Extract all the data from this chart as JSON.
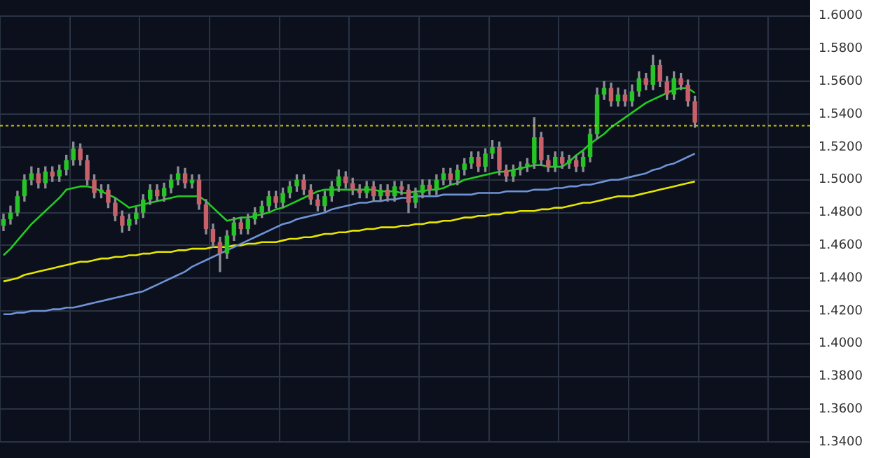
{
  "chart_data": {
    "type": "candlestick",
    "categories": [
      null,
      null,
      null,
      null,
      null,
      null,
      null,
      null,
      null,
      null,
      null,
      null,
      null,
      null,
      null,
      null,
      null,
      null,
      null,
      null,
      null,
      null,
      null,
      null,
      null,
      null,
      null,
      null,
      null,
      null,
      null,
      null,
      null,
      null,
      null,
      null,
      null,
      null,
      null,
      null,
      null,
      null,
      null,
      null,
      null,
      null,
      null,
      null,
      null,
      null,
      null,
      null,
      null,
      null,
      null,
      null,
      null,
      null,
      null,
      null,
      null,
      null,
      null,
      null,
      null,
      null,
      null,
      null,
      null,
      null,
      null,
      null,
      null,
      null,
      null,
      null,
      null,
      null,
      null,
      null,
      null,
      null,
      null,
      null,
      null,
      null,
      null,
      null,
      null,
      null,
      null,
      null,
      null,
      null,
      null,
      null,
      null,
      null,
      null,
      null,
      null,
      null,
      null,
      null,
      null,
      null,
      null,
      null,
      null,
      null,
      null,
      null,
      null,
      null,
      null,
      null
    ],
    "ohlc": [
      [
        1.472,
        1.479,
        1.469,
        1.476
      ],
      [
        1.476,
        1.484,
        1.473,
        1.48
      ],
      [
        1.48,
        1.493,
        1.478,
        1.49
      ],
      [
        1.49,
        1.503,
        1.487,
        1.5
      ],
      [
        1.5,
        1.508,
        1.497,
        1.504
      ],
      [
        1.504,
        1.507,
        1.495,
        1.498
      ],
      [
        1.498,
        1.508,
        1.495,
        1.505
      ],
      [
        1.505,
        1.508,
        1.499,
        1.502
      ],
      [
        1.502,
        1.509,
        1.499,
        1.506
      ],
      [
        1.506,
        1.515,
        1.503,
        1.512
      ],
      [
        1.512,
        1.523,
        1.509,
        1.519
      ],
      [
        1.519,
        1.522,
        1.509,
        1.512
      ],
      [
        1.512,
        1.515,
        1.497,
        1.5
      ],
      [
        1.5,
        1.503,
        1.489,
        1.492
      ],
      [
        1.492,
        1.497,
        1.489,
        1.494
      ],
      [
        1.494,
        1.497,
        1.483,
        1.486
      ],
      [
        1.486,
        1.489,
        1.475,
        1.478
      ],
      [
        1.478,
        1.481,
        1.468,
        1.472
      ],
      [
        1.472,
        1.479,
        1.469,
        1.476
      ],
      [
        1.476,
        1.483,
        1.473,
        1.48
      ],
      [
        1.48,
        1.491,
        1.477,
        1.488
      ],
      [
        1.488,
        1.497,
        1.485,
        1.494
      ],
      [
        1.494,
        1.497,
        1.487,
        1.49
      ],
      [
        1.49,
        1.498,
        1.487,
        1.495
      ],
      [
        1.495,
        1.503,
        1.492,
        1.5
      ],
      [
        1.5,
        1.508,
        1.497,
        1.504
      ],
      [
        1.504,
        1.507,
        1.495,
        1.498
      ],
      [
        1.498,
        1.503,
        1.495,
        1.5
      ],
      [
        1.5,
        1.503,
        1.482,
        1.485
      ],
      [
        1.485,
        1.488,
        1.467,
        1.47
      ],
      [
        1.47,
        1.473,
        1.459,
        1.462
      ],
      [
        1.462,
        1.465,
        1.444,
        1.455
      ],
      [
        1.455,
        1.469,
        1.452,
        1.466
      ],
      [
        1.466,
        1.477,
        1.463,
        1.474
      ],
      [
        1.474,
        1.477,
        1.467,
        1.47
      ],
      [
        1.47,
        1.479,
        1.467,
        1.476
      ],
      [
        1.476,
        1.483,
        1.473,
        1.48
      ],
      [
        1.48,
        1.487,
        1.477,
        1.484
      ],
      [
        1.484,
        1.493,
        1.481,
        1.49
      ],
      [
        1.49,
        1.493,
        1.483,
        1.486
      ],
      [
        1.486,
        1.495,
        1.483,
        1.492
      ],
      [
        1.492,
        1.499,
        1.489,
        1.496
      ],
      [
        1.496,
        1.503,
        1.493,
        1.5
      ],
      [
        1.5,
        1.503,
        1.491,
        1.494
      ],
      [
        1.494,
        1.497,
        1.485,
        1.488
      ],
      [
        1.488,
        1.491,
        1.481,
        1.484
      ],
      [
        1.484,
        1.493,
        1.481,
        1.49
      ],
      [
        1.49,
        1.499,
        1.487,
        1.496
      ],
      [
        1.496,
        1.506,
        1.493,
        1.502
      ],
      [
        1.502,
        1.505,
        1.495,
        1.498
      ],
      [
        1.498,
        1.501,
        1.491,
        1.494
      ],
      [
        1.494,
        1.497,
        1.489,
        1.492
      ],
      [
        1.492,
        1.499,
        1.489,
        1.496
      ],
      [
        1.496,
        1.499,
        1.487,
        1.49
      ],
      [
        1.49,
        1.497,
        1.487,
        1.494
      ],
      [
        1.494,
        1.497,
        1.487,
        1.49
      ],
      [
        1.49,
        1.499,
        1.487,
        1.496
      ],
      [
        1.496,
        1.499,
        1.491,
        1.494
      ],
      [
        1.494,
        1.497,
        1.48,
        1.486
      ],
      [
        1.486,
        1.495,
        1.483,
        1.492
      ],
      [
        1.492,
        1.5,
        1.489,
        1.497
      ],
      [
        1.497,
        1.5,
        1.491,
        1.494
      ],
      [
        1.494,
        1.503,
        1.491,
        1.5
      ],
      [
        1.5,
        1.507,
        1.497,
        1.504
      ],
      [
        1.504,
        1.507,
        1.497,
        1.5
      ],
      [
        1.5,
        1.509,
        1.497,
        1.506
      ],
      [
        1.506,
        1.513,
        1.503,
        1.51
      ],
      [
        1.51,
        1.517,
        1.507,
        1.514
      ],
      [
        1.514,
        1.517,
        1.505,
        1.508
      ],
      [
        1.508,
        1.519,
        1.505,
        1.516
      ],
      [
        1.516,
        1.524,
        1.513,
        1.52
      ],
      [
        1.52,
        1.523,
        1.503,
        1.506
      ],
      [
        1.506,
        1.509,
        1.499,
        1.502
      ],
      [
        1.502,
        1.509,
        1.499,
        1.506
      ],
      [
        1.506,
        1.511,
        1.503,
        1.508
      ],
      [
        1.508,
        1.513,
        1.505,
        1.51
      ],
      [
        1.51,
        1.538,
        1.507,
        1.526
      ],
      [
        1.526,
        1.529,
        1.509,
        1.512
      ],
      [
        1.512,
        1.515,
        1.505,
        1.508
      ],
      [
        1.508,
        1.517,
        1.505,
        1.514
      ],
      [
        1.514,
        1.517,
        1.507,
        1.51
      ],
      [
        1.51,
        1.515,
        1.507,
        1.512
      ],
      [
        1.512,
        1.515,
        1.505,
        1.508
      ],
      [
        1.508,
        1.517,
        1.505,
        1.514
      ],
      [
        1.514,
        1.531,
        1.511,
        1.528
      ],
      [
        1.528,
        1.556,
        1.525,
        1.552
      ],
      [
        1.552,
        1.56,
        1.549,
        1.556
      ],
      [
        1.556,
        1.559,
        1.545,
        1.548
      ],
      [
        1.548,
        1.556,
        1.545,
        1.552
      ],
      [
        1.552,
        1.555,
        1.545,
        1.548
      ],
      [
        1.548,
        1.558,
        1.545,
        1.554
      ],
      [
        1.554,
        1.566,
        1.551,
        1.562
      ],
      [
        1.562,
        1.565,
        1.555,
        1.558
      ],
      [
        1.558,
        1.576,
        1.555,
        1.57
      ],
      [
        1.57,
        1.573,
        1.557,
        1.56
      ],
      [
        1.56,
        1.563,
        1.549,
        1.552
      ],
      [
        1.552,
        1.566,
        1.549,
        1.562
      ],
      [
        1.562,
        1.565,
        1.555,
        1.558
      ],
      [
        1.558,
        1.561,
        1.545,
        1.548
      ],
      [
        1.548,
        1.551,
        1.532,
        1.535
      ],
      null,
      null,
      null,
      null,
      null,
      null,
      null,
      null,
      null,
      null,
      null,
      null,
      null,
      null,
      null,
      null
    ],
    "series": [
      {
        "type": "line",
        "color": "#22cc22",
        "values": [
          1.454,
          1.458,
          1.463,
          1.468,
          1.473,
          1.477,
          1.481,
          1.485,
          1.489,
          1.494,
          1.495,
          1.496,
          1.496,
          1.495,
          1.493,
          1.491,
          1.489,
          1.486,
          1.483,
          1.484,
          1.485,
          1.486,
          1.487,
          1.488,
          1.489,
          1.49,
          1.49,
          1.49,
          1.49,
          1.487,
          1.483,
          1.479,
          1.475,
          1.476,
          1.477,
          1.477,
          1.478,
          1.479,
          1.48,
          1.482,
          1.483,
          1.485,
          1.487,
          1.489,
          1.491,
          1.493,
          1.494,
          1.494,
          1.494,
          1.494,
          1.494,
          1.494,
          1.494,
          1.494,
          1.493,
          1.493,
          1.493,
          1.492,
          1.492,
          1.493,
          1.493,
          1.494,
          1.494,
          1.495,
          1.497,
          1.498,
          1.5,
          1.501,
          1.502,
          1.503,
          1.504,
          1.505,
          1.505,
          1.506,
          1.507,
          1.508,
          1.509,
          1.509,
          1.508,
          1.508,
          1.508,
          1.511,
          1.515,
          1.518,
          1.522,
          1.525,
          1.528,
          1.532,
          1.535,
          1.538,
          1.541,
          1.544,
          1.547,
          1.549,
          1.551,
          1.553,
          1.555,
          1.556,
          1.556,
          1.553,
          null,
          null,
          null,
          null,
          null,
          null,
          null,
          null,
          null,
          null,
          null,
          null,
          null,
          null,
          null,
          null
        ]
      },
      {
        "type": "line",
        "color": "#6f93d6",
        "values": [
          1.418,
          1.418,
          1.419,
          1.419,
          1.42,
          1.42,
          1.42,
          1.421,
          1.421,
          1.422,
          1.422,
          1.423,
          1.424,
          1.425,
          1.426,
          1.427,
          1.428,
          1.429,
          1.43,
          1.431,
          1.432,
          1.434,
          1.436,
          1.438,
          1.44,
          1.442,
          1.444,
          1.447,
          1.449,
          1.451,
          1.453,
          1.455,
          1.457,
          1.459,
          1.461,
          1.463,
          1.465,
          1.467,
          1.469,
          1.471,
          1.473,
          1.474,
          1.476,
          1.477,
          1.478,
          1.479,
          1.48,
          1.482,
          1.483,
          1.484,
          1.485,
          1.486,
          1.486,
          1.487,
          1.487,
          1.488,
          1.488,
          1.489,
          1.489,
          1.49,
          1.49,
          1.49,
          1.49,
          1.491,
          1.491,
          1.491,
          1.491,
          1.491,
          1.492,
          1.492,
          1.492,
          1.492,
          1.493,
          1.493,
          1.493,
          1.493,
          1.494,
          1.494,
          1.494,
          1.495,
          1.495,
          1.496,
          1.496,
          1.497,
          1.497,
          1.498,
          1.499,
          1.5,
          1.5,
          1.501,
          1.502,
          1.503,
          1.504,
          1.506,
          1.507,
          1.509,
          1.51,
          1.512,
          1.514,
          1.516,
          null,
          null,
          null,
          null,
          null,
          null,
          null,
          null,
          null,
          null,
          null,
          null,
          null,
          null,
          null,
          null
        ]
      },
      {
        "type": "line",
        "color": "#e6e600",
        "values": [
          1.438,
          1.439,
          1.44,
          1.442,
          1.443,
          1.444,
          1.445,
          1.446,
          1.447,
          1.448,
          1.449,
          1.45,
          1.45,
          1.451,
          1.452,
          1.452,
          1.453,
          1.453,
          1.454,
          1.454,
          1.455,
          1.455,
          1.456,
          1.456,
          1.456,
          1.457,
          1.457,
          1.458,
          1.458,
          1.458,
          1.459,
          1.459,
          1.459,
          1.46,
          1.46,
          1.461,
          1.461,
          1.462,
          1.462,
          1.462,
          1.463,
          1.464,
          1.464,
          1.465,
          1.465,
          1.466,
          1.467,
          1.467,
          1.468,
          1.468,
          1.469,
          1.469,
          1.47,
          1.47,
          1.471,
          1.471,
          1.471,
          1.472,
          1.472,
          1.473,
          1.473,
          1.474,
          1.474,
          1.475,
          1.475,
          1.476,
          1.477,
          1.477,
          1.478,
          1.478,
          1.479,
          1.479,
          1.48,
          1.48,
          1.481,
          1.481,
          1.481,
          1.482,
          1.482,
          1.483,
          1.483,
          1.484,
          1.485,
          1.486,
          1.486,
          1.487,
          1.488,
          1.489,
          1.49,
          1.49,
          1.49,
          1.491,
          1.492,
          1.493,
          1.494,
          1.495,
          1.496,
          1.497,
          1.498,
          1.499,
          null,
          null,
          null,
          null,
          null,
          null,
          null,
          null,
          null,
          null,
          null,
          null,
          null,
          null,
          null,
          null
        ]
      }
    ],
    "ylim": [
      1.34,
      1.6
    ],
    "yticks": [
      {
        "value": 1.34,
        "label": "1.3400"
      },
      {
        "value": 1.36,
        "label": "1.3600"
      },
      {
        "value": 1.38,
        "label": "1.3800"
      },
      {
        "value": 1.4,
        "label": "1.4000"
      },
      {
        "value": 1.42,
        "label": "1.4200"
      },
      {
        "value": 1.44,
        "label": "1.4400"
      },
      {
        "value": 1.46,
        "label": "1.4600"
      },
      {
        "value": 1.48,
        "label": "1.4800"
      },
      {
        "value": 1.5,
        "label": "1.5000"
      },
      {
        "value": 1.52,
        "label": "1.5200"
      },
      {
        "value": 1.54,
        "label": "1.5400"
      },
      {
        "value": 1.56,
        "label": "1.5600"
      },
      {
        "value": 1.58,
        "label": "1.5800"
      },
      {
        "value": 1.6,
        "label": "1.6000"
      }
    ],
    "ref_lines": [
      {
        "axis": "y",
        "value": 1.533,
        "color": "#c8c800",
        "line_style": "dotted"
      }
    ],
    "grid": true,
    "legend": false,
    "marker": "none",
    "tick_labels": "y"
  }
}
